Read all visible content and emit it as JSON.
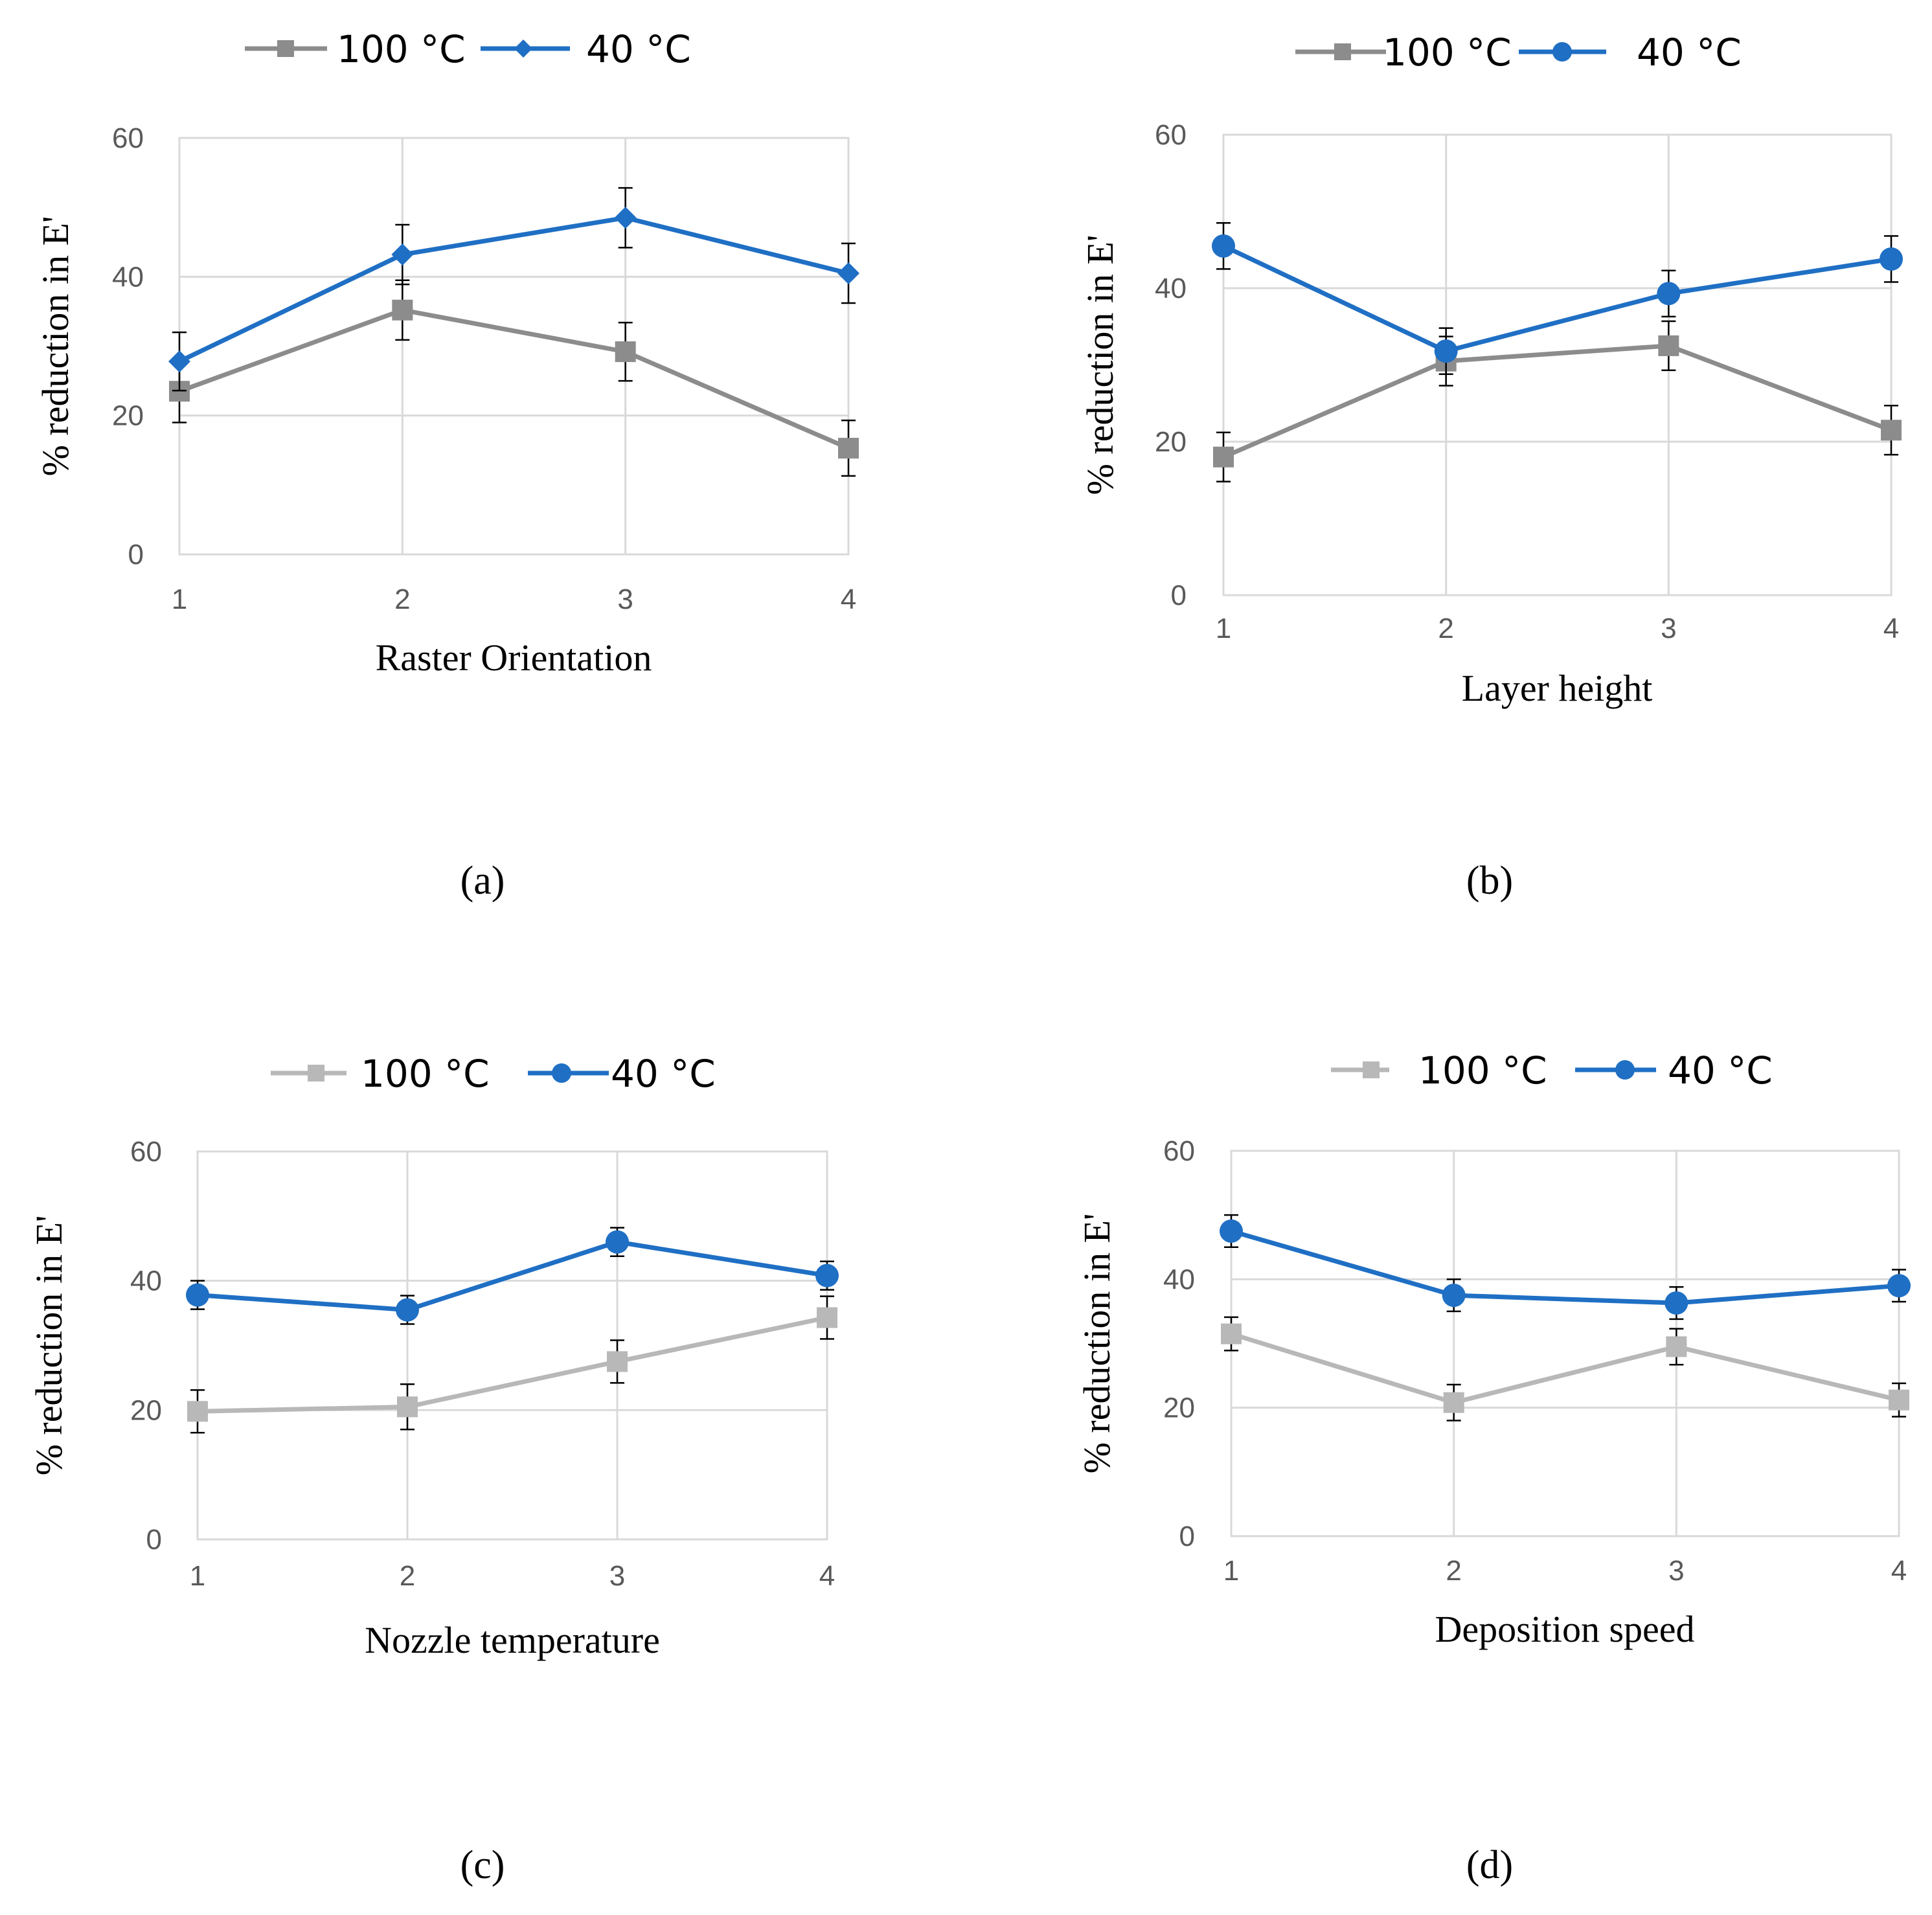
{
  "chart_data": [
    {
      "type": "line",
      "panel_label": "(a)",
      "xlabel": "Raster Orientation",
      "ylabel": "% reduction in E'",
      "x": [
        1,
        2,
        3,
        4
      ],
      "x_tick_labels": [
        "1",
        "2",
        "3",
        "4"
      ],
      "y_tick_labels": [
        "0",
        "20",
        "40",
        "60"
      ],
      "ylim": [
        0,
        60
      ],
      "grid": true,
      "legend_position": "top",
      "series": [
        {
          "name": "100 °C",
          "color": "#8c8c8c",
          "marker": "square",
          "values": [
            23.5,
            35.2,
            29.2,
            15.3
          ],
          "errors": [
            4.5,
            4.3,
            4.2,
            4.0
          ]
        },
        {
          "name": "40 °C",
          "color": "#1f6fc4",
          "marker": "diamond",
          "values": [
            27.8,
            43.2,
            48.5,
            40.5
          ],
          "errors": [
            4.2,
            4.3,
            4.3,
            4.3
          ]
        }
      ]
    },
    {
      "type": "line",
      "panel_label": "(b)",
      "xlabel": "Layer height",
      "ylabel": "% reduction in E'",
      "x": [
        1,
        2,
        3,
        4
      ],
      "x_tick_labels": [
        "1",
        "2",
        "3",
        "4"
      ],
      "y_tick_labels": [
        "0",
        "20",
        "40",
        "60"
      ],
      "ylim": [
        0,
        60
      ],
      "grid": true,
      "legend_position": "top",
      "series": [
        {
          "name": "100 °C",
          "color": "#8c8c8c",
          "marker": "square",
          "values": [
            18.0,
            30.5,
            32.5,
            21.5
          ],
          "errors": [
            3.2,
            3.2,
            3.2,
            3.2
          ]
        },
        {
          "name": "40 °C",
          "color": "#1f6fc4",
          "marker": "circle",
          "values": [
            45.5,
            31.8,
            39.3,
            43.8
          ],
          "errors": [
            3.0,
            3.0,
            3.0,
            3.0
          ]
        }
      ]
    },
    {
      "type": "line",
      "panel_label": "(c)",
      "xlabel": "Nozzle temperature",
      "ylabel": "% reduction in E'",
      "x": [
        1,
        2,
        3,
        4
      ],
      "x_tick_labels": [
        "1",
        "2",
        "3",
        "4"
      ],
      "y_tick_labels": [
        "0",
        "20",
        "40",
        "60"
      ],
      "ylim": [
        0,
        60
      ],
      "grid": true,
      "legend_position": "top",
      "series": [
        {
          "name": "100 °C",
          "color": "#b8b8b8",
          "marker": "square",
          "values": [
            19.8,
            20.5,
            27.5,
            34.3
          ],
          "errors": [
            3.3,
            3.5,
            3.3,
            3.3
          ]
        },
        {
          "name": "40 °C",
          "color": "#1f6fc4",
          "marker": "circle",
          "values": [
            37.8,
            35.5,
            46.0,
            40.8
          ],
          "errors": [
            2.2,
            2.2,
            2.2,
            2.2
          ]
        }
      ]
    },
    {
      "type": "line",
      "panel_label": "(d)",
      "xlabel": "Deposition speed",
      "ylabel": "% reduction in E'",
      "x": [
        1,
        2,
        3,
        4
      ],
      "x_tick_labels": [
        "1",
        "2",
        "3",
        "4"
      ],
      "y_tick_labels": [
        "0",
        "20",
        "40",
        "60"
      ],
      "ylim": [
        0,
        60
      ],
      "grid": true,
      "legend_position": "top",
      "series": [
        {
          "name": "100 °C",
          "color": "#b8b8b8",
          "marker": "square",
          "values": [
            31.5,
            20.8,
            29.5,
            21.2
          ],
          "errors": [
            2.6,
            2.8,
            2.8,
            2.6
          ]
        },
        {
          "name": "40 °C",
          "color": "#1f6fc4",
          "marker": "circle",
          "values": [
            47.5,
            37.5,
            36.3,
            39.0
          ],
          "errors": [
            2.5,
            2.5,
            2.5,
            2.5
          ]
        }
      ]
    }
  ]
}
